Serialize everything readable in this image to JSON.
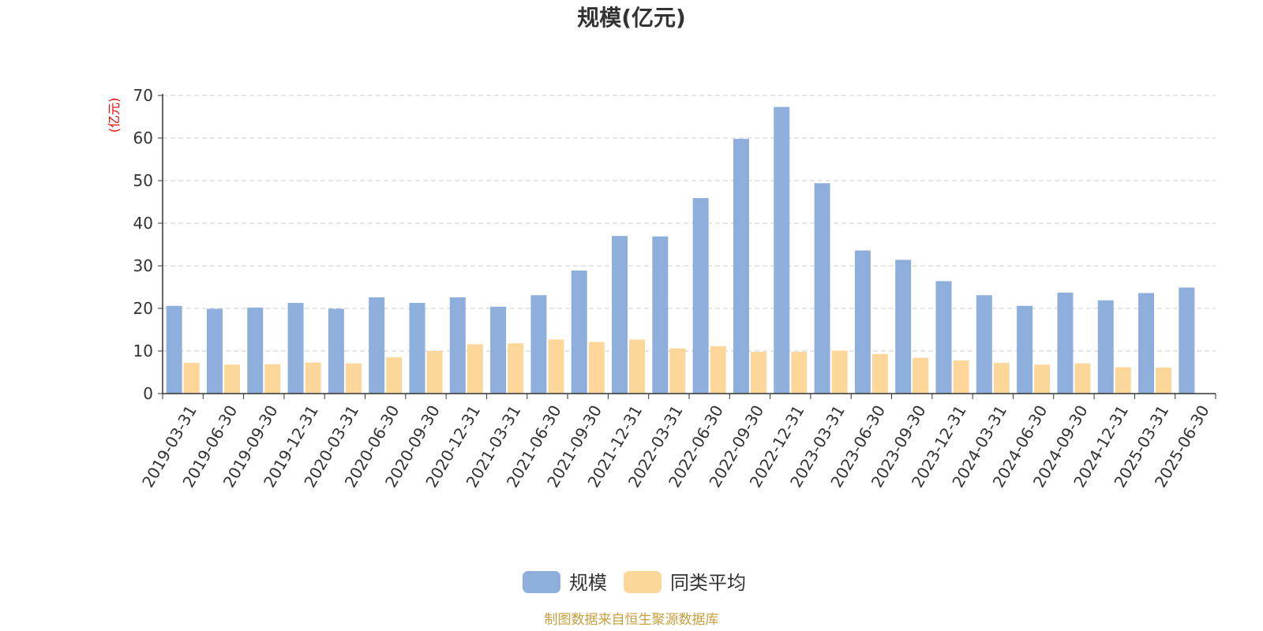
{
  "chart_data": {
    "type": "bar",
    "title": "规模(亿元)",
    "yunit": "(亿元)",
    "ylim": [
      0,
      70
    ],
    "yticks": [
      0,
      10,
      20,
      30,
      40,
      50,
      60,
      70
    ],
    "grid": true,
    "legend_position": "bottom-center",
    "categories": [
      "2019-03-31",
      "2019-06-30",
      "2019-09-30",
      "2019-12-31",
      "2020-03-31",
      "2020-06-30",
      "2020-09-30",
      "2020-12-31",
      "2021-03-31",
      "2021-06-30",
      "2021-09-30",
      "2021-12-31",
      "2022-03-31",
      "2022-06-30",
      "2022-09-30",
      "2022-12-31",
      "2023-03-31",
      "2023-06-30",
      "2023-09-30",
      "2023-12-31",
      "2024-03-31",
      "2024-06-30",
      "2024-09-30",
      "2024-12-31",
      "2025-03-31",
      "2025-06-30"
    ],
    "series": [
      {
        "name": "规模",
        "color": "#8eaedb",
        "values": [
          20.6,
          19.9,
          20.2,
          21.3,
          19.9,
          22.6,
          21.3,
          22.6,
          20.4,
          23.1,
          28.9,
          37.0,
          36.9,
          45.9,
          59.8,
          67.3,
          49.4,
          33.6,
          31.4,
          26.4,
          23.1,
          20.6,
          23.7,
          21.9,
          23.6,
          24.9
        ]
      },
      {
        "name": "同类平均",
        "color": "#fdd799",
        "values": [
          7.2,
          6.8,
          6.9,
          7.3,
          7.1,
          8.5,
          10.0,
          11.6,
          11.8,
          12.7,
          12.1,
          12.7,
          10.6,
          11.1,
          9.8,
          9.8,
          10.1,
          9.3,
          8.4,
          7.8,
          7.2,
          6.8,
          7.1,
          6.2,
          6.1,
          null
        ]
      }
    ]
  },
  "source_note": "制图数据来自恒生聚源数据库",
  "colors": {
    "title": "#333333",
    "axis": "#333333",
    "unit_label": "#ff0000",
    "grid": "#cccccc",
    "source_note": "#c8a040"
  }
}
